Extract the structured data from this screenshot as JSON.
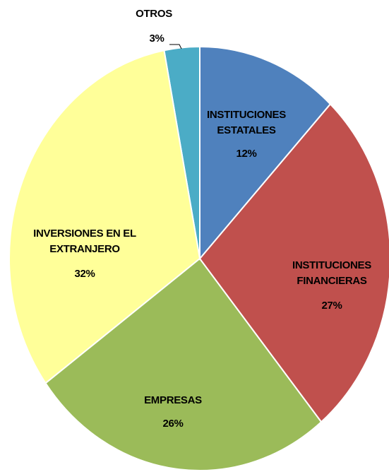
{
  "chart_data": {
    "type": "pie",
    "categories": [
      "INSTITUCIONES ESTATALES",
      "INSTITUCIONES FINANCIERAS",
      "EMPRESAS",
      "INVERSIONES EN EL EXTRANJERO",
      "OTROS"
    ],
    "values": [
      12,
      27,
      26,
      32,
      3
    ],
    "value_labels": [
      "12%",
      "27%",
      "26%",
      "32%",
      "3%"
    ],
    "colors": [
      "#4f81bd",
      "#c0504d",
      "#9bbb59",
      "#ffff99",
      "#4bacc6"
    ]
  }
}
